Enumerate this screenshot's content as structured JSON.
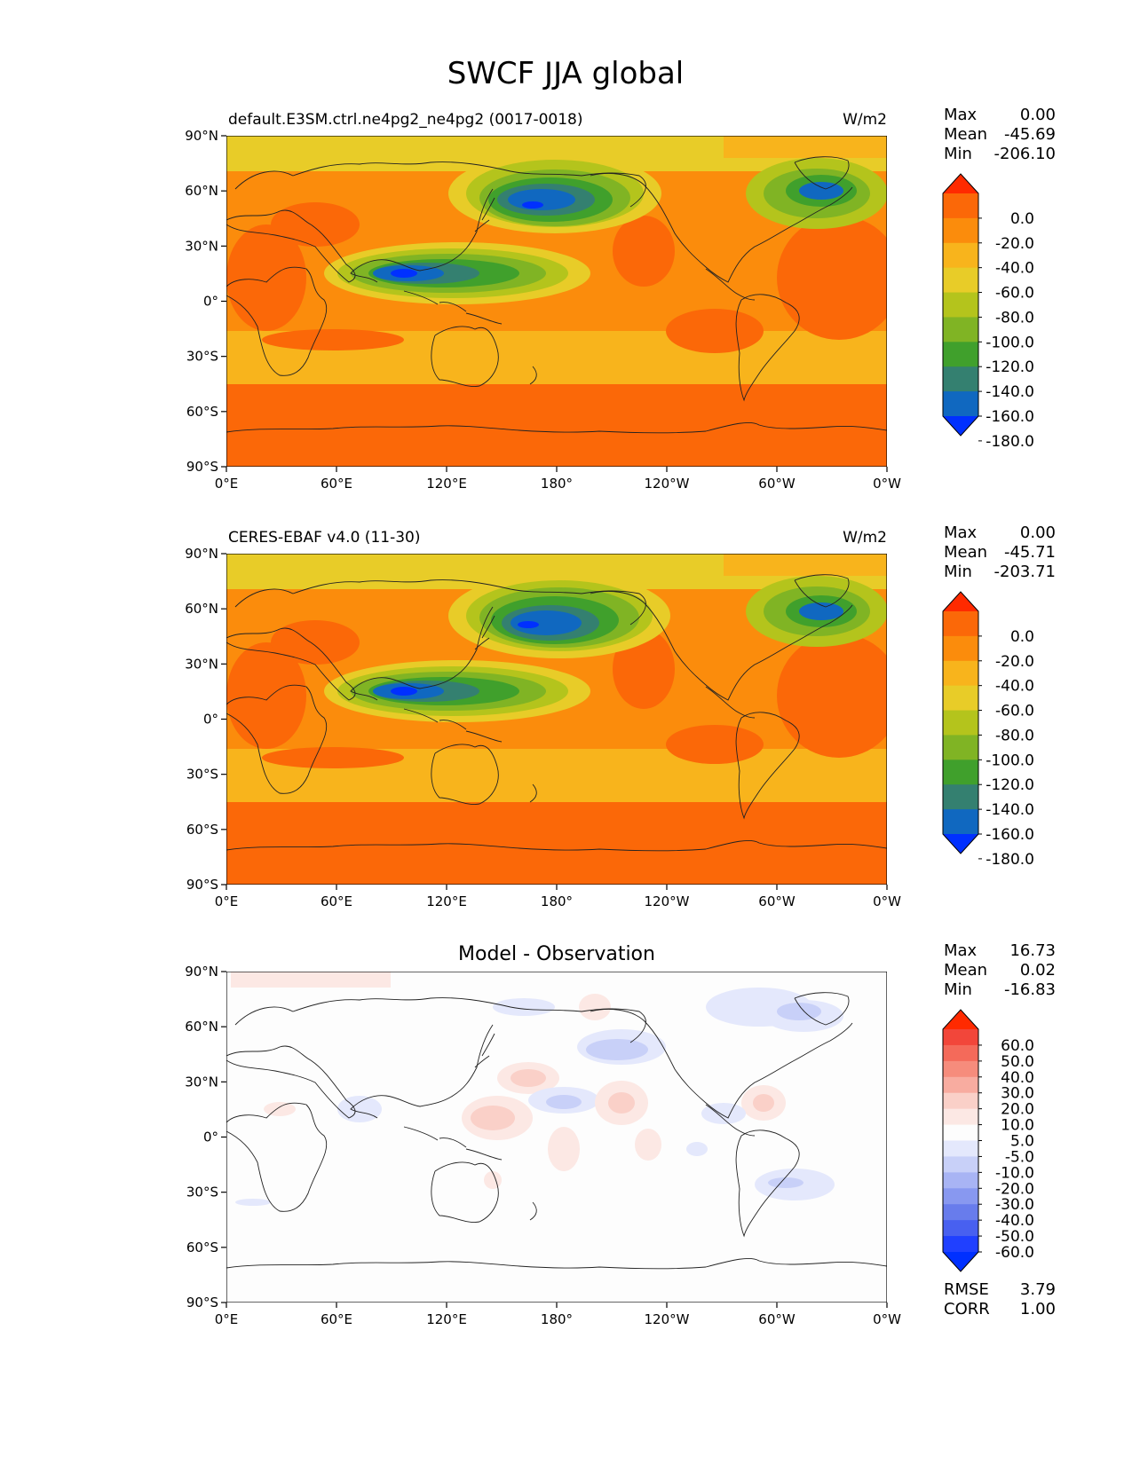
{
  "figure": {
    "title": "SWCF JJA global"
  },
  "axes": {
    "lat_ticks": [
      "90°N",
      "60°N",
      "30°N",
      "0°",
      "30°S",
      "60°S",
      "90°S"
    ],
    "lon_ticks": [
      "0°E",
      "60°E",
      "120°E",
      "180°",
      "120°W",
      "60°W",
      "0°W"
    ]
  },
  "panels": [
    {
      "id": "test",
      "left_title": "default.E3SM.ctrl.ne4pg2_ne4pg2 (0017-0018)",
      "center_title": "",
      "units": "W/m2",
      "stats": {
        "labels": [
          "Max",
          "Mean",
          "Min"
        ],
        "values": [
          "0.00",
          "-45.69",
          "-206.10"
        ]
      },
      "colorbar_labels": [
        "0.0",
        "-20.0",
        "-40.0",
        "-60.0",
        "-80.0",
        "-100.0",
        "-120.0",
        "-140.0",
        "-160.0",
        "-180.0"
      ]
    },
    {
      "id": "ref",
      "left_title": "CERES-EBAF v4.0 (11-30)",
      "center_title": "",
      "units": "W/m2",
      "stats": {
        "labels": [
          "Max",
          "Mean",
          "Min"
        ],
        "values": [
          "0.00",
          "-45.71",
          "-203.71"
        ]
      },
      "colorbar_labels": [
        "0.0",
        "-20.0",
        "-40.0",
        "-60.0",
        "-80.0",
        "-100.0",
        "-120.0",
        "-140.0",
        "-160.0",
        "-180.0"
      ]
    },
    {
      "id": "diff",
      "left_title": "",
      "center_title": "Model - Observation",
      "units": "",
      "stats": {
        "labels": [
          "Max",
          "Mean",
          "Min"
        ],
        "values": [
          "16.73",
          "0.02",
          "-16.83"
        ]
      },
      "colorbar_labels": [
        "60.0",
        "50.0",
        "40.0",
        "30.0",
        "20.0",
        "10.0",
        "5.0",
        "-5.0",
        "-10.0",
        "-20.0",
        "-30.0",
        "-40.0",
        "-50.0",
        "-60.0"
      ],
      "metrics": {
        "labels": [
          "RMSE",
          "CORR"
        ],
        "values": [
          "3.79",
          "1.00"
        ]
      }
    }
  ],
  "colors": {
    "swcf_scale": [
      "#ff2a00",
      "#fb6808",
      "#fb8c0c",
      "#f8b41c",
      "#e8cc28",
      "#b4c41c",
      "#80b424",
      "#40a02c",
      "#348070",
      "#1068c0",
      "#0030ff"
    ],
    "diff_scale": [
      "#ff2a00",
      "#f2463a",
      "#f46a5a",
      "#f68c7c",
      "#f8aca0",
      "#fad0c8",
      "#fce8e4",
      "#fdfdfd",
      "#e4e8fc",
      "#c8d0f8",
      "#a8b4f4",
      "#8898f0",
      "#687cec",
      "#4860f0",
      "#2040ff",
      "#0030ff"
    ]
  }
}
